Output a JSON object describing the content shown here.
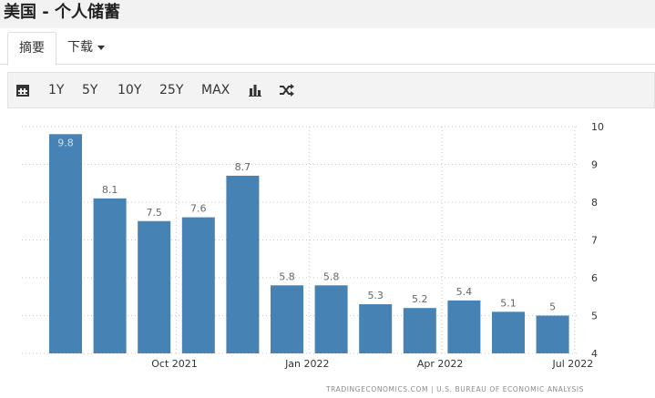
{
  "page": {
    "title": "美国 - 个人储蓄"
  },
  "tabs": [
    {
      "label": "摘要",
      "active": true
    },
    {
      "label": "下载",
      "dropdown": true
    }
  ],
  "toolbar": {
    "calendar_icon": "calendar-icon",
    "ranges": [
      "1Y",
      "5Y",
      "10Y",
      "25Y",
      "MAX"
    ],
    "chart_type_icon": "bar-chart-icon",
    "compare_icon": "shuffle-icon"
  },
  "colors": {
    "bar": "#4682b4",
    "label": "#666666",
    "axis_text": "#333333"
  },
  "chart_data": {
    "type": "bar",
    "categories": [
      "Aug 2021",
      "Sep 2021",
      "Oct 2021",
      "Nov 2021",
      "Dec 2021",
      "Jan 2022",
      "Feb 2022",
      "Mar 2022",
      "Apr 2022",
      "May 2022",
      "Jun 2022",
      "Jul 2022"
    ],
    "values": [
      9.8,
      8.1,
      7.5,
      7.6,
      8.7,
      5.8,
      5.8,
      5.3,
      5.2,
      5.4,
      5.1,
      5
    ],
    "value_labels": [
      "9.8",
      "8.1",
      "7.5",
      "7.6",
      "8.7",
      "5.8",
      "5.8",
      "5.3",
      "5.2",
      "5.4",
      "5.1",
      "5"
    ],
    "ylim": [
      4,
      10
    ],
    "yticks": [
      "4",
      "5",
      "6",
      "7",
      "8",
      "9",
      "10"
    ],
    "xtick_labels": [
      {
        "label": "Oct 2021",
        "index": 2
      },
      {
        "label": "Jan 2022",
        "index": 5
      },
      {
        "label": "Apr 2022",
        "index": 8
      },
      {
        "label": "Jul 2022",
        "index": 11
      }
    ],
    "y_axis_side": "right",
    "grid": true,
    "source": "TRADINGECONOMICS.COM | U.S. BUREAU OF ECONOMIC ANALYSIS"
  }
}
